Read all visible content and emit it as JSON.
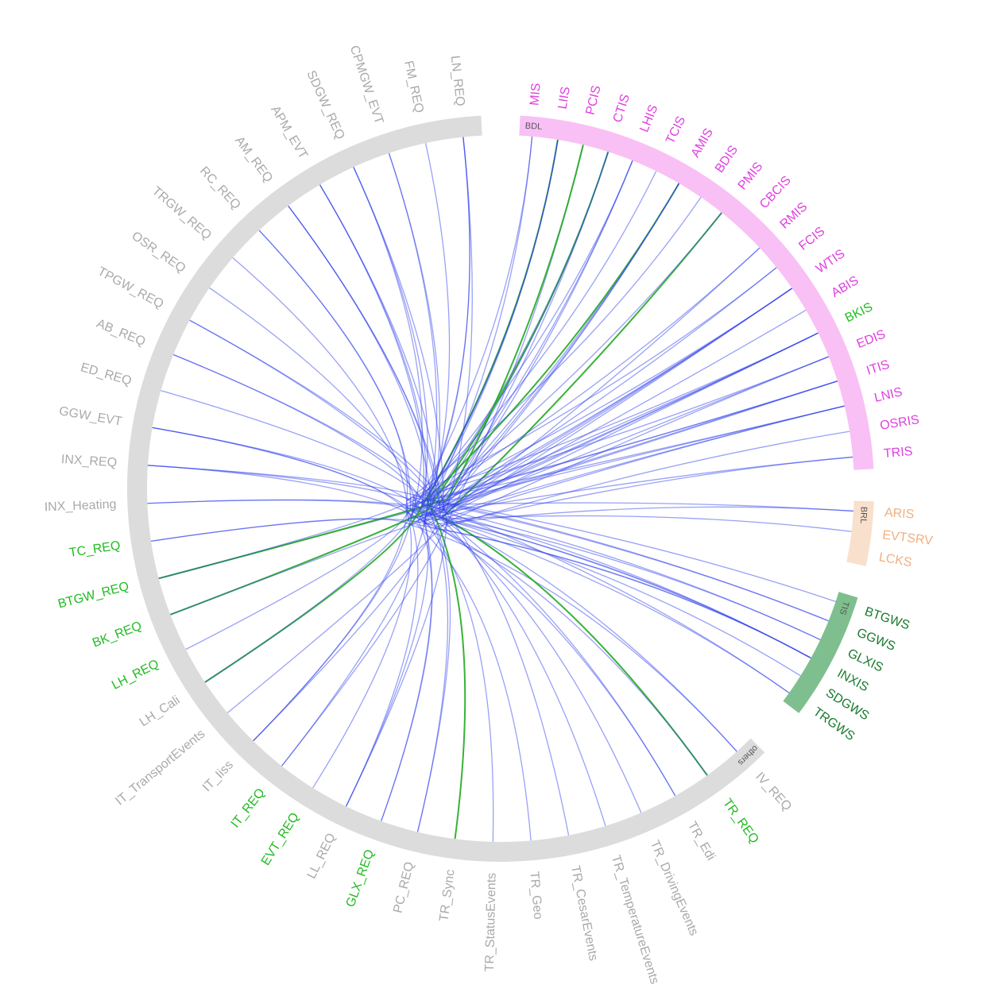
{
  "diagram": {
    "groups": [
      {
        "label": "BDL",
        "color": "#f9c0f5",
        "nodes": [
          {
            "label": "MIS",
            "color": "#e040e0"
          },
          {
            "label": "LIIS",
            "color": "#e040e0"
          },
          {
            "label": "PCIS",
            "color": "#e040e0"
          },
          {
            "label": "CTIS",
            "color": "#e040e0"
          },
          {
            "label": "LHIS",
            "color": "#e040e0"
          },
          {
            "label": "TCIS",
            "color": "#e040e0"
          },
          {
            "label": "AMIS",
            "color": "#e040e0"
          },
          {
            "label": "BDIS",
            "color": "#e040e0"
          },
          {
            "label": "PMIS",
            "color": "#e040e0"
          },
          {
            "label": "CBCIS",
            "color": "#e040e0"
          },
          {
            "label": "RMIS",
            "color": "#e040e0"
          },
          {
            "label": "FCIS",
            "color": "#e040e0"
          },
          {
            "label": "WTIS",
            "color": "#e040e0"
          },
          {
            "label": "ABIS",
            "color": "#e040e0"
          },
          {
            "label": "BKIS",
            "color": "#22bb22"
          },
          {
            "label": "EDIS",
            "color": "#e040e0"
          },
          {
            "label": "ITIS",
            "color": "#e040e0"
          },
          {
            "label": "LNIS",
            "color": "#e040e0"
          },
          {
            "label": "OSRIS",
            "color": "#e040e0"
          },
          {
            "label": "TRIS",
            "color": "#e040e0"
          }
        ]
      },
      {
        "label": "BRL",
        "color": "#f8e0cc",
        "nodes": [
          {
            "label": "ARIS",
            "color": "#f0b080"
          },
          {
            "label": "EVTSRV",
            "color": "#f0b080"
          },
          {
            "label": "LCKS",
            "color": "#f0b080"
          }
        ]
      },
      {
        "label": "TIS",
        "color": "#7fbf8f",
        "nodes": [
          {
            "label": "BTGWS",
            "color": "#1a7a2e"
          },
          {
            "label": "GGWS",
            "color": "#1a7a2e"
          },
          {
            "label": "GLXIS",
            "color": "#1a7a2e"
          },
          {
            "label": "INXIS",
            "color": "#1a7a2e"
          },
          {
            "label": "SDGWS",
            "color": "#1a7a2e"
          },
          {
            "label": "TRGWS",
            "color": "#1a7a2e"
          }
        ]
      },
      {
        "label": "others",
        "color": "#dcdcdc",
        "nodes": [
          {
            "label": "IV_REQ",
            "color": "#aaaaaa"
          },
          {
            "label": "TR_REQ",
            "color": "#22bb22"
          },
          {
            "label": "TR_Edi",
            "color": "#aaaaaa"
          },
          {
            "label": "TR_DrivingEvents",
            "color": "#aaaaaa"
          },
          {
            "label": "TR_TemperatureEvents",
            "color": "#aaaaaa"
          },
          {
            "label": "TR_CesarEvents",
            "color": "#aaaaaa"
          },
          {
            "label": "TR_Geo",
            "color": "#aaaaaa"
          },
          {
            "label": "TR_StatusEvents",
            "color": "#aaaaaa"
          },
          {
            "label": "TR_Sync",
            "color": "#aaaaaa"
          },
          {
            "label": "PC_REQ",
            "color": "#aaaaaa"
          },
          {
            "label": "GLX_REQ",
            "color": "#22bb22"
          },
          {
            "label": "LL_REQ",
            "color": "#aaaaaa"
          },
          {
            "label": "EVT_REQ",
            "color": "#22bb22"
          },
          {
            "label": "IT_REQ",
            "color": "#22bb22"
          },
          {
            "label": "IT_Iiss",
            "color": "#aaaaaa"
          },
          {
            "label": "IT_TransportEvents",
            "color": "#aaaaaa"
          },
          {
            "label": "LH_Cali",
            "color": "#aaaaaa"
          },
          {
            "label": "LH_REQ",
            "color": "#22bb22"
          },
          {
            "label": "BK_REQ",
            "color": "#22bb22"
          },
          {
            "label": "BTGW_REQ",
            "color": "#22bb22"
          },
          {
            "label": "TC_REQ",
            "color": "#22bb22"
          },
          {
            "label": "INX_Heating",
            "color": "#aaaaaa"
          },
          {
            "label": "INX_REQ",
            "color": "#aaaaaa"
          },
          {
            "label": "GGW_EVT",
            "color": "#aaaaaa"
          },
          {
            "label": "ED_REQ",
            "color": "#aaaaaa"
          },
          {
            "label": "AB_REQ",
            "color": "#aaaaaa"
          },
          {
            "label": "TPGW_REQ",
            "color": "#aaaaaa"
          },
          {
            "label": "OSR_REQ",
            "color": "#aaaaaa"
          },
          {
            "label": "TRGW_REQ",
            "color": "#aaaaaa"
          },
          {
            "label": "RC_REQ",
            "color": "#aaaaaa"
          },
          {
            "label": "AM_REQ",
            "color": "#aaaaaa"
          },
          {
            "label": "APM_EVT",
            "color": "#aaaaaa"
          },
          {
            "label": "SDGW_REQ",
            "color": "#aaaaaa"
          },
          {
            "label": "CPMGW_EVT",
            "color": "#aaaaaa"
          },
          {
            "label": "FM_REQ",
            "color": "#aaaaaa"
          },
          {
            "label": "LN_REQ",
            "color": "#aaaaaa"
          }
        ]
      }
    ]
  }
}
